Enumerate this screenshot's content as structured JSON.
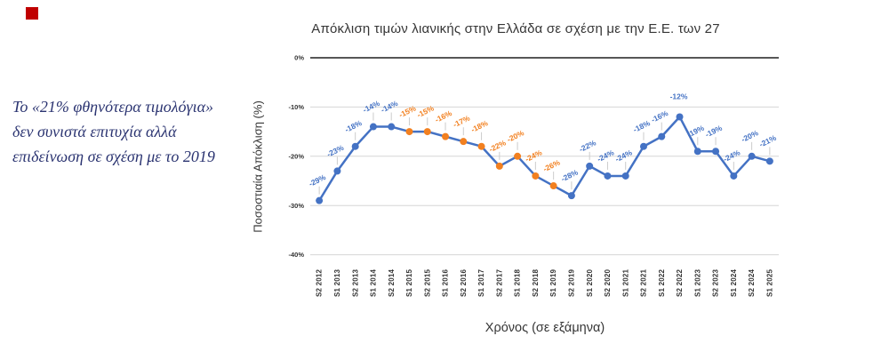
{
  "page": {
    "background": "#FFFFFF"
  },
  "decorations": {
    "red_square_color": "#C00000"
  },
  "sidebar_note": {
    "text": "Το «21% φθηνότερα τιμολόγια» δεν συνιστά επιτυχία αλλά επιδείνωση σε σχέση με το 2019",
    "color": "#2B3471"
  },
  "chart_data": {
    "type": "line",
    "title": "Απόκλιση τιμών λιανικής στην Ελλάδα σε σχέση με την Ε.Ε. των 27",
    "xlabel": "Χρόνος (σε εξάμηνα)",
    "ylabel": "Ποσοστιαία Απόκλιση (%)",
    "categories": [
      "S2 2012",
      "S1 2013",
      "S2 2013",
      "S1 2014",
      "S2 2014",
      "S1 2015",
      "S2 2015",
      "S1 2016",
      "S2 2016",
      "S1 2017",
      "S2 2017",
      "S1 2018",
      "S2 2018",
      "S1 2019",
      "S2 2019",
      "S1 2020",
      "S2 2020",
      "S1 2021",
      "S2 2021",
      "S1 2022",
      "S2 2022",
      "S1 2023",
      "S2 2023",
      "S1 2024",
      "S2 2024",
      "S1 2025"
    ],
    "series": [
      {
        "name": "Ποσοστιαία Απόκλιση",
        "values": [
          -29,
          -23,
          -18,
          -14,
          -14,
          -15,
          -15,
          -16,
          -17,
          -18,
          -22,
          -20,
          -24,
          -26,
          -28,
          -22,
          -24,
          -24,
          -18,
          -16,
          -12,
          -19,
          -19,
          -24,
          -20,
          -21
        ],
        "data_labels": [
          "-29%",
          "-23%",
          "-18%",
          "-14%",
          "-14%",
          "-15%",
          "-15%",
          "-16%",
          "-17%",
          "-18%",
          "-22%",
          "-20%",
          "-24%",
          "-26%",
          "-28%",
          "-22%",
          "-24%",
          "-24%",
          "-18%",
          "-16%",
          "-12%",
          "-19%",
          "-19%",
          "-24%",
          "-20%",
          "-21%"
        ]
      }
    ],
    "orange_point_indices": [
      5,
      6,
      7,
      8,
      9,
      10,
      11,
      12,
      13
    ],
    "horizontal_label_indices": [
      20
    ],
    "y_ticks": [
      "0%",
      "-10%",
      "-20%",
      "-30%",
      "-40%"
    ],
    "y_tick_values": [
      0,
      -10,
      -20,
      -30,
      -40
    ],
    "ylim": [
      -40,
      0
    ],
    "grid": true,
    "legend": "none",
    "colors": {
      "line": "#4472C4",
      "marker_blue": "#4472C4",
      "marker_orange": "#F28020",
      "label_blue": "#4472C4",
      "label_orange": "#F28020",
      "gridline": "#D6D6D6",
      "zero_line": "#3F3F3F",
      "leader_line": "#CCCCCC",
      "tick_text": "#333333",
      "title_text": "#363636"
    }
  }
}
